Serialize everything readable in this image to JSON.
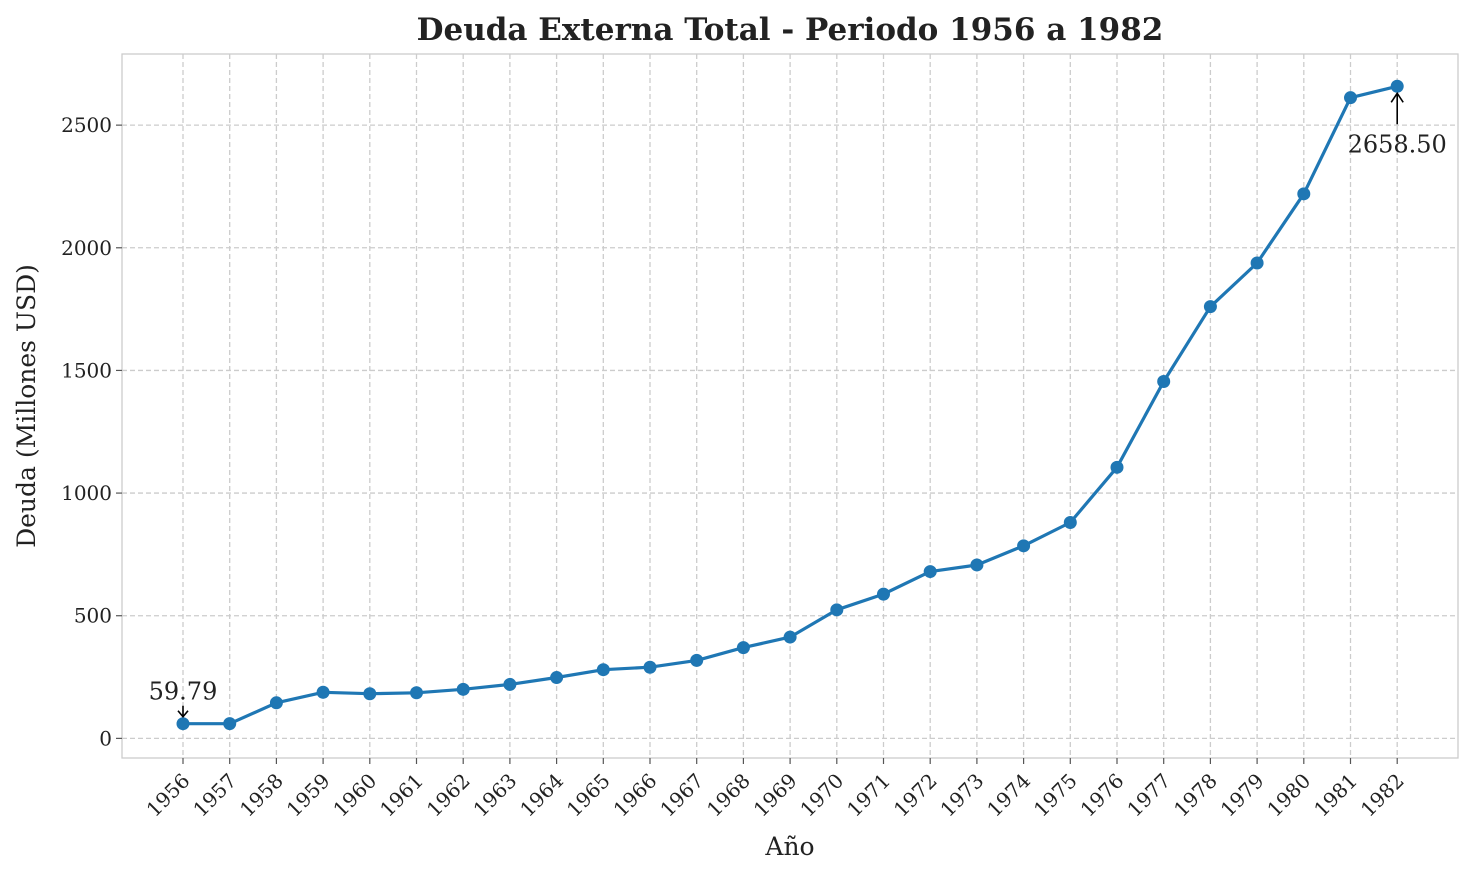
{
  "chart_data": {
    "type": "line",
    "title": "Deuda Externa Total - Periodo 1956 a 1982",
    "xlabel": "Año",
    "ylabel": "Deuda (Millones USD)",
    "x": [
      "1956",
      "1957",
      "1958",
      "1959",
      "1960",
      "1961",
      "1962",
      "1963",
      "1964",
      "1965",
      "1966",
      "1967",
      "1968",
      "1969",
      "1970",
      "1971",
      "1972",
      "1973",
      "1974",
      "1975",
      "1976",
      "1977",
      "1978",
      "1979",
      "1980",
      "1981",
      "1982"
    ],
    "series": [
      {
        "color": "#1f77b4",
        "values": [
          59.79,
          60,
          145,
          188,
          182,
          186,
          200,
          220,
          248,
          280,
          290,
          318,
          370,
          413,
          524,
          588,
          680,
          707,
          785,
          880,
          1105,
          1455,
          1760,
          1938,
          2220,
          2612,
          2658.5
        ]
      }
    ],
    "ylim": [
      -80,
      2790
    ],
    "yticks": [
      0,
      500,
      1000,
      1500,
      2000,
      2500
    ],
    "grid": true,
    "annotations": [
      {
        "text": "59.79",
        "x_index": 0
      },
      {
        "text": "2658.50",
        "x_index": 26
      }
    ]
  }
}
